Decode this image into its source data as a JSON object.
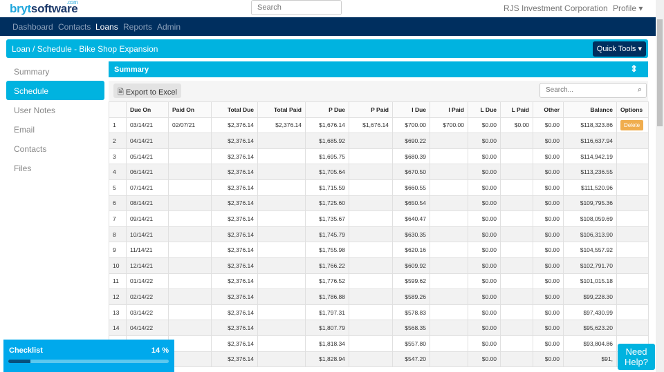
{
  "header": {
    "logo": "brytsoftware",
    "logo_suffix": ".com",
    "search_placeholder": "Search",
    "company": "RJS Investment Corporation",
    "profile": "Profile ▾"
  },
  "nav": [
    "Dashboard",
    "Contacts",
    "Loans",
    "Reports",
    "Admin"
  ],
  "nav_active": "Loans",
  "breadcrumb": "Loan / Schedule - Bike Shop Expansion",
  "quick_tools": "Quick Tools ▾",
  "sidebar": [
    "Summary",
    "Schedule",
    "User Notes",
    "Email",
    "Contacts",
    "Files"
  ],
  "sidebar_active": "Schedule",
  "summary_title": "Summary",
  "export_label": "Export to Excel",
  "table_search_placeholder": "Search...",
  "columns": [
    "",
    "Due On",
    "Paid On",
    "Total Due",
    "Total Paid",
    "P Due",
    "P Paid",
    "I Due",
    "I Paid",
    "L Due",
    "L Paid",
    "Other",
    "Balance",
    "Options"
  ],
  "rows": [
    [
      "1",
      "03/14/21",
      "02/07/21",
      "$2,376.14",
      "$2,376.14",
      "$1,676.14",
      "$1,676.14",
      "$700.00",
      "$700.00",
      "$0.00",
      "$0.00",
      "$0.00",
      "$118,323.86",
      "Delete"
    ],
    [
      "2",
      "04/14/21",
      "",
      "$2,376.14",
      "",
      "$1,685.92",
      "",
      "$690.22",
      "",
      "$0.00",
      "",
      "$0.00",
      "$116,637.94",
      ""
    ],
    [
      "3",
      "05/14/21",
      "",
      "$2,376.14",
      "",
      "$1,695.75",
      "",
      "$680.39",
      "",
      "$0.00",
      "",
      "$0.00",
      "$114,942.19",
      ""
    ],
    [
      "4",
      "06/14/21",
      "",
      "$2,376.14",
      "",
      "$1,705.64",
      "",
      "$670.50",
      "",
      "$0.00",
      "",
      "$0.00",
      "$113,236.55",
      ""
    ],
    [
      "5",
      "07/14/21",
      "",
      "$2,376.14",
      "",
      "$1,715.59",
      "",
      "$660.55",
      "",
      "$0.00",
      "",
      "$0.00",
      "$111,520.96",
      ""
    ],
    [
      "6",
      "08/14/21",
      "",
      "$2,376.14",
      "",
      "$1,725.60",
      "",
      "$650.54",
      "",
      "$0.00",
      "",
      "$0.00",
      "$109,795.36",
      ""
    ],
    [
      "7",
      "09/14/21",
      "",
      "$2,376.14",
      "",
      "$1,735.67",
      "",
      "$640.47",
      "",
      "$0.00",
      "",
      "$0.00",
      "$108,059.69",
      ""
    ],
    [
      "8",
      "10/14/21",
      "",
      "$2,376.14",
      "",
      "$1,745.79",
      "",
      "$630.35",
      "",
      "$0.00",
      "",
      "$0.00",
      "$106,313.90",
      ""
    ],
    [
      "9",
      "11/14/21",
      "",
      "$2,376.14",
      "",
      "$1,755.98",
      "",
      "$620.16",
      "",
      "$0.00",
      "",
      "$0.00",
      "$104,557.92",
      ""
    ],
    [
      "10",
      "12/14/21",
      "",
      "$2,376.14",
      "",
      "$1,766.22",
      "",
      "$609.92",
      "",
      "$0.00",
      "",
      "$0.00",
      "$102,791.70",
      ""
    ],
    [
      "11",
      "01/14/22",
      "",
      "$2,376.14",
      "",
      "$1,776.52",
      "",
      "$599.62",
      "",
      "$0.00",
      "",
      "$0.00",
      "$101,015.18",
      ""
    ],
    [
      "12",
      "02/14/22",
      "",
      "$2,376.14",
      "",
      "$1,786.88",
      "",
      "$589.26",
      "",
      "$0.00",
      "",
      "$0.00",
      "$99,228.30",
      ""
    ],
    [
      "13",
      "03/14/22",
      "",
      "$2,376.14",
      "",
      "$1,797.31",
      "",
      "$578.83",
      "",
      "$0.00",
      "",
      "$0.00",
      "$97,430.99",
      ""
    ],
    [
      "14",
      "04/14/22",
      "",
      "$2,376.14",
      "",
      "$1,807.79",
      "",
      "$568.35",
      "",
      "$0.00",
      "",
      "$0.00",
      "$95,623.20",
      ""
    ],
    [
      "",
      "",
      "",
      "$2,376.14",
      "",
      "$1,818.34",
      "",
      "$557.80",
      "",
      "$0.00",
      "",
      "$0.00",
      "$93,804.86",
      ""
    ],
    [
      "",
      "",
      "",
      "$2,376.14",
      "",
      "$1,828.94",
      "",
      "$547.20",
      "",
      "$0.00",
      "",
      "$0.00",
      "$91,",
      ""
    ]
  ],
  "checklist": {
    "title": "Checklist",
    "percent_label": "14 %",
    "progress": 14
  },
  "help_label": "Need Help?"
}
